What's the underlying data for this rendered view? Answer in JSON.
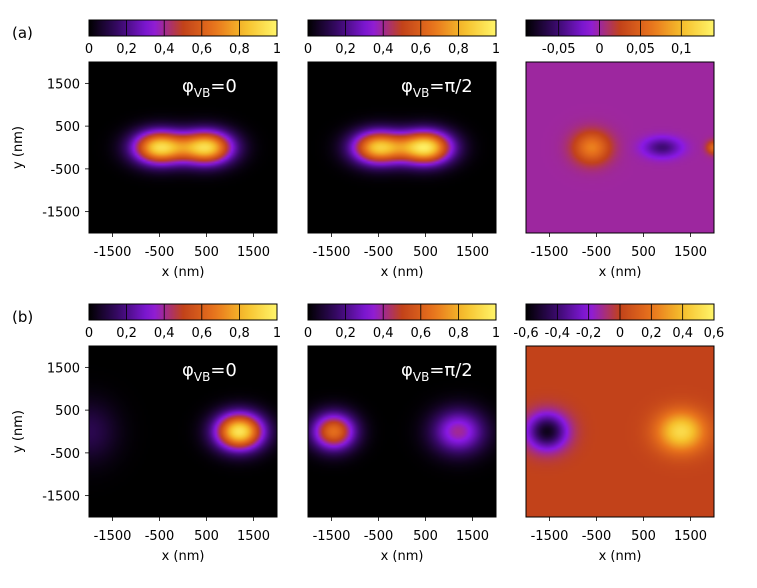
{
  "chart_data": {
    "type": "heatmap",
    "colormap": [
      "#000000",
      "#3b0a6e",
      "#8a19e6",
      "#c2421a",
      "#e8731c",
      "#f6c02c",
      "#fff56a"
    ],
    "rows": [
      {
        "label": "(a)",
        "panels": [
          {
            "id": "a1",
            "colorbar": {
              "range": [
                0,
                1
              ],
              "ticks": [
                "0",
                "0,2",
                "0,4",
                "0,6",
                "0,8",
                "1"
              ],
              "tick_values": [
                0,
                0.2,
                0.4,
                0.6,
                0.8,
                1
              ]
            },
            "annotation": {
              "phi": "φ",
              "sub": "VB",
              "rest": "=0"
            },
            "blobs": [
              {
                "x": -500,
                "y": 0,
                "value": 0.9,
                "sx": 550,
                "sy": 380
              },
              {
                "x": 500,
                "y": 0,
                "value": 0.9,
                "sx": 550,
                "sy": 380
              }
            ],
            "background": 0.0
          },
          {
            "id": "a2",
            "colorbar": {
              "range": [
                0,
                1
              ],
              "ticks": [
                "0",
                "0,2",
                "0,4",
                "0,6",
                "0,8",
                "1"
              ],
              "tick_values": [
                0,
                0.2,
                0.4,
                0.6,
                0.8,
                1
              ]
            },
            "annotation": {
              "phi": "φ",
              "sub": "VB",
              "rest": "=π/2"
            },
            "blobs": [
              {
                "x": -500,
                "y": 0,
                "value": 0.85,
                "sx": 550,
                "sy": 380
              },
              {
                "x": 500,
                "y": 0,
                "value": 0.95,
                "sx": 550,
                "sy": 380
              }
            ],
            "background": 0.0
          },
          {
            "id": "a3",
            "colorbar": {
              "range": [
                -0.09,
                0.14
              ],
              "ticks": [
                "-0,05",
                "0",
                "0,05",
                "0,1"
              ],
              "tick_values": [
                -0.05,
                0,
                0.05,
                0.1
              ]
            },
            "annotation": null,
            "blobs": [
              {
                "x": -600,
                "y": 0,
                "value": 0.07,
                "sx": 380,
                "sy": 360
              },
              {
                "x": 900,
                "y": 0,
                "value": -0.05,
                "sx": 380,
                "sy": 220
              },
              {
                "x": 2000,
                "y": 0,
                "value": 0.06,
                "sx": 150,
                "sy": 150
              }
            ],
            "background": 0.0
          }
        ]
      },
      {
        "label": "(b)",
        "panels": [
          {
            "id": "b1",
            "colorbar": {
              "range": [
                0,
                1
              ],
              "ticks": [
                "0",
                "0,2",
                "0,4",
                "0,6",
                "0,8",
                "1"
              ],
              "tick_values": [
                0,
                0.2,
                0.4,
                0.6,
                0.8,
                1
              ]
            },
            "annotation": {
              "phi": "φ",
              "sub": "VB",
              "rest": "=0"
            },
            "blobs": [
              {
                "x": 1200,
                "y": 0,
                "value": 0.95,
                "sx": 500,
                "sy": 420
              },
              {
                "x": -2000,
                "y": 0,
                "value": 0.12,
                "sx": 600,
                "sy": 700
              }
            ],
            "background": 0.0
          },
          {
            "id": "b2",
            "colorbar": {
              "range": [
                0,
                1
              ],
              "ticks": [
                "0",
                "0,2",
                "0,4",
                "0,6",
                "0,8",
                "1"
              ],
              "tick_values": [
                0,
                0.2,
                0.4,
                0.6,
                0.8,
                1
              ]
            },
            "annotation": {
              "phi": "φ",
              "sub": "VB",
              "rest": "=π/2"
            },
            "blobs": [
              {
                "x": -1450,
                "y": 0,
                "value": 0.65,
                "sx": 450,
                "sy": 420
              },
              {
                "x": 1200,
                "y": 0,
                "value": 0.4,
                "sx": 550,
                "sy": 500
              }
            ],
            "background": 0.0
          },
          {
            "id": "b3",
            "colorbar": {
              "range": [
                -0.6,
                0.6
              ],
              "ticks": [
                "-0,6",
                "-0,4",
                "-0,2",
                "0",
                "0,2",
                "0,4",
                "0,6"
              ],
              "tick_values": [
                -0.6,
                -0.4,
                -0.2,
                0,
                0.2,
                0.4,
                0.6
              ]
            },
            "annotation": null,
            "blobs": [
              {
                "x": -1550,
                "y": 0,
                "value": -0.55,
                "sx": 420,
                "sy": 420
              },
              {
                "x": 1300,
                "y": 0,
                "value": 0.5,
                "sx": 520,
                "sy": 480
              }
            ],
            "background": 0.0
          }
        ]
      }
    ],
    "x_range": [
      -2000,
      2000
    ],
    "y_range": [
      -2000,
      2000
    ],
    "x_ticks": [
      -1500,
      -500,
      500,
      1500
    ],
    "x_tick_labels": [
      "-1500",
      "-500",
      "500",
      "1500"
    ],
    "y_ticks": [
      1500,
      500,
      -500,
      -1500
    ],
    "y_tick_labels": [
      "1500",
      "500",
      "-500",
      "-1500"
    ],
    "xlabel": "x (nm)",
    "ylabel": "y (nm)"
  }
}
